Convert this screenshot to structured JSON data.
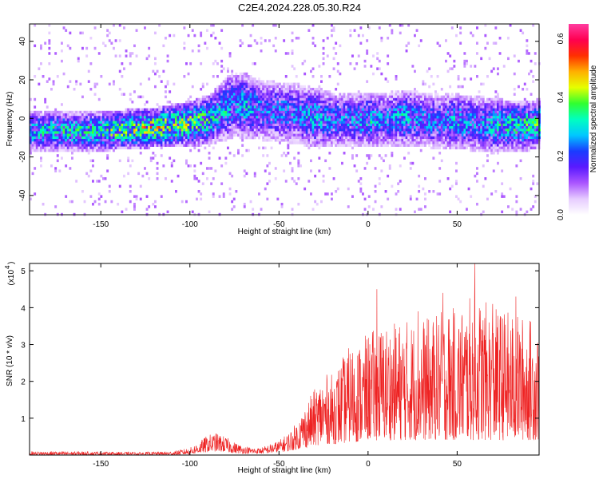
{
  "figure": {
    "title": "C2E4.2024.228.05.30.R24"
  },
  "chart_data": [
    {
      "type": "heatmap",
      "title": "C2E4.2024.228.05.30.R24",
      "xlabel": "Height of straight line (km)",
      "ylabel": "Frequency (Hz)",
      "xlim": [
        -190,
        96
      ],
      "ylim": [
        -50,
        49
      ],
      "xticks": [
        -150,
        -100,
        -50,
        0,
        50
      ],
      "yticks": [
        -40,
        -20,
        0,
        20,
        40
      ],
      "grid": false,
      "colorbar": {
        "label": "Normalized spectral amplitude",
        "ticks": [
          0.0,
          0.2,
          0.4,
          0.6
        ],
        "tick_labels": [
          "0.0",
          "0.2",
          "0.4",
          "0.6"
        ],
        "range": [
          0,
          0.65
        ],
        "colormap": "rainbow (white-lavender → purple → blue → cyan → green → yellow → orange → red → magenta)",
        "colors": [
          "#ffffff",
          "#e6ccff",
          "#aa55ff",
          "#5a1aff",
          "#1a3cff",
          "#00c8ff",
          "#00ffc0",
          "#30ff30",
          "#e6ff00",
          "#ffb000",
          "#ff3000",
          "#ff0050",
          "#ff3ca0"
        ]
      },
      "band": {
        "x": [
          -190,
          -150,
          -120,
          -100,
          -90,
          -85,
          -80,
          -75,
          -70,
          -60,
          -50,
          -40,
          -30,
          -20,
          -10,
          0,
          10,
          20,
          30,
          40,
          50,
          60,
          70,
          80,
          90,
          96
        ],
        "center_frequency": [
          -6,
          -6,
          -4,
          -2,
          0,
          3,
          6,
          8,
          7,
          5,
          4,
          3,
          1,
          0,
          0,
          0,
          0,
          1,
          0,
          -1,
          -1,
          -2,
          -3,
          -3,
          -3,
          -2
        ],
        "half_width": [
          8,
          8,
          8,
          9,
          10,
          11,
          13,
          13,
          13,
          12,
          12,
          12,
          12,
          11,
          11,
          11,
          11,
          11,
          11,
          11,
          11,
          11,
          11,
          10,
          10,
          10
        ],
        "peak_amplitude": [
          0.3,
          0.35,
          0.45,
          0.4,
          0.35,
          0.3,
          0.3,
          0.25,
          0.3,
          0.25,
          0.25,
          0.25,
          0.3,
          0.25,
          0.25,
          0.3,
          0.25,
          0.3,
          0.25,
          0.25,
          0.3,
          0.25,
          0.3,
          0.35,
          0.35,
          0.35
        ]
      }
    },
    {
      "type": "line",
      "title": "",
      "xlabel": "Height of straight line (km)",
      "ylabel": "SNR (10 * v/v)",
      "y_multiplier": "(x10",
      "y_multiplier_exp": "4",
      "xlim": [
        -190,
        96
      ],
      "ylim": [
        0,
        5.2
      ],
      "xticks": [
        -150,
        -100,
        -50,
        0,
        50
      ],
      "yticks": [
        1,
        2,
        3,
        4,
        5
      ],
      "grid": false,
      "color": "#ee2222",
      "envelope": {
        "x": [
          -190,
          -160,
          -130,
          -110,
          -100,
          -95,
          -90,
          -85,
          -80,
          -75,
          -70,
          -65,
          -60,
          -55,
          -50,
          -45,
          -40,
          -35,
          -30,
          -25,
          -20,
          -15,
          -10,
          -5,
          0,
          5,
          10,
          15,
          20,
          25,
          30,
          35,
          40,
          45,
          50,
          55,
          60,
          65,
          70,
          75,
          80,
          85,
          90,
          96
        ],
        "max": [
          0.1,
          0.1,
          0.08,
          0.1,
          0.2,
          0.35,
          0.55,
          0.6,
          0.5,
          0.35,
          0.25,
          0.2,
          0.2,
          0.3,
          0.4,
          0.6,
          0.9,
          1.4,
          1.8,
          2.2,
          2.2,
          2.6,
          3.0,
          3.1,
          3.3,
          3.5,
          3.6,
          3.6,
          3.7,
          3.7,
          3.8,
          3.7,
          3.9,
          4.0,
          4.0,
          4.2,
          4.4,
          4.2,
          4.0,
          4.0,
          3.9,
          3.8,
          3.8,
          3.5
        ],
        "min": [
          0.0,
          0.0,
          0.0,
          0.0,
          0.02,
          0.05,
          0.08,
          0.1,
          0.08,
          0.05,
          0.04,
          0.04,
          0.04,
          0.05,
          0.08,
          0.1,
          0.15,
          0.2,
          0.25,
          0.3,
          0.3,
          0.3,
          0.35,
          0.35,
          0.4,
          0.4,
          0.4,
          0.4,
          0.4,
          0.4,
          0.4,
          0.4,
          0.4,
          0.4,
          0.4,
          0.4,
          0.4,
          0.4,
          0.4,
          0.4,
          0.4,
          0.4,
          0.4,
          0.4
        ]
      },
      "peaks": [
        {
          "x": 5,
          "y": 4.5
        },
        {
          "x": 42,
          "y": 4.4
        },
        {
          "x": 60,
          "y": 5.2
        },
        {
          "x": 83,
          "y": 4.3
        },
        {
          "x": 70,
          "y": 4.1
        },
        {
          "x": 28,
          "y": 3.9
        }
      ]
    }
  ]
}
